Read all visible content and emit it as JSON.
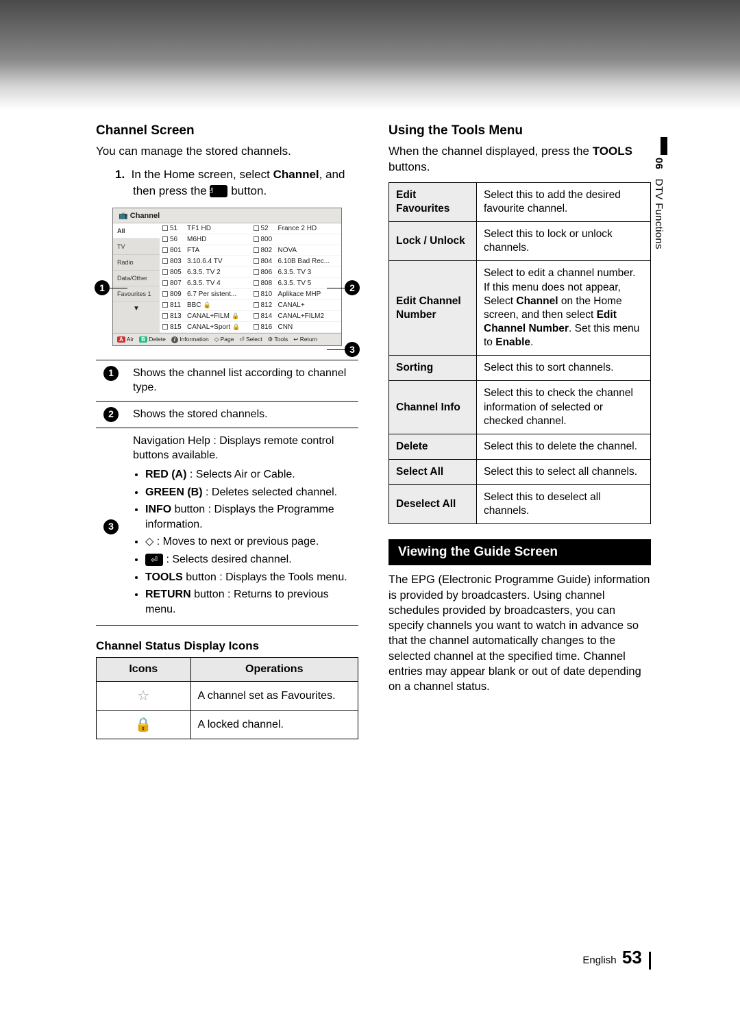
{
  "side_tab": {
    "section_num": "06",
    "title": "DTV Functions"
  },
  "left": {
    "h_channel_screen": "Channel Screen",
    "intro": "You can manage the stored channels.",
    "step1_a": "In the Home screen, select ",
    "step1_b": "Channel",
    "step1_c": ", and then press the ",
    "step1_d": " button.",
    "shot": {
      "title": "Channel",
      "side_tabs": [
        "All",
        "TV",
        "Radio",
        "Data/Other",
        "Favourites 1"
      ],
      "channels": [
        [
          {
            "n": "51",
            "t": "TF1 HD"
          },
          {
            "n": "52",
            "t": "France 2 HD"
          }
        ],
        [
          {
            "n": "56",
            "t": "M6HD"
          },
          {
            "n": "800",
            "t": ""
          }
        ],
        [
          {
            "n": "801",
            "t": "FTA"
          },
          {
            "n": "802",
            "t": "NOVA"
          }
        ],
        [
          {
            "n": "803",
            "t": "3.10.6.4 TV"
          },
          {
            "n": "804",
            "t": "6.10B Bad Rec..."
          }
        ],
        [
          {
            "n": "805",
            "t": "6.3.5. TV 2"
          },
          {
            "n": "806",
            "t": "6.3.5. TV 3"
          }
        ],
        [
          {
            "n": "807",
            "t": "6.3.5. TV 4"
          },
          {
            "n": "808",
            "t": "6.3.5. TV 5"
          }
        ],
        [
          {
            "n": "809",
            "t": "6.7 Per sistent..."
          },
          {
            "n": "810",
            "t": "Aplikace MHP"
          }
        ],
        [
          {
            "n": "811",
            "t": "BBC",
            "lock": true
          },
          {
            "n": "812",
            "t": "CANAL+"
          }
        ],
        [
          {
            "n": "813",
            "t": "CANAL+FILM",
            "lock": true
          },
          {
            "n": "814",
            "t": "CANAL+FILM2"
          }
        ],
        [
          {
            "n": "815",
            "t": "CANAL+Sport",
            "lock": true
          },
          {
            "n": "816",
            "t": "CNN"
          }
        ]
      ],
      "legend": {
        "a": "A",
        "air": "Air",
        "b": "B",
        "del": "Delete",
        "info": "Information",
        "page": "Page",
        "select": "Select",
        "tools": "Tools",
        "ret": "Return"
      }
    },
    "ref1": "Shows the channel list according to channel type.",
    "ref2": "Shows the stored channels.",
    "ref3_lead": "Navigation Help : Displays remote control buttons available.",
    "ref3_items": [
      {
        "b": "RED (A)",
        "t": " : Selects Air or Cable."
      },
      {
        "b": "GREEN (B)",
        "t": " : Deletes selected channel."
      },
      {
        "b": "INFO",
        "t": " button : Displays the Programme information."
      },
      {
        "b": "",
        "t": " : Moves to next or previous page.",
        "diamond": true
      },
      {
        "b": "",
        "t": " : Selects desired channel.",
        "enter": true
      },
      {
        "b": "TOOLS",
        "t": " button : Displays the Tools menu."
      },
      {
        "b": "RETURN",
        "t": " button : Returns to previous menu."
      }
    ],
    "h_status_icons": "Channel Status Display Icons",
    "icons_header": {
      "c1": "Icons",
      "c2": "Operations"
    },
    "icons_rows": [
      {
        "op": "A channel set as Favourites."
      },
      {
        "op": "A locked channel."
      }
    ]
  },
  "right": {
    "h_tools": "Using the Tools Menu",
    "tools_intro_a": "When the channel displayed, press the ",
    "tools_intro_b": "TOOLS",
    "tools_intro_c": " buttons.",
    "tools_rows": [
      {
        "k": "Edit Favourites",
        "v": "Select this to add the desired favourite channel."
      },
      {
        "k": "Lock / Unlock",
        "v": "Select this to lock or unlock channels."
      },
      {
        "k": "Edit Channel Number",
        "v_parts": {
          "a": "Select to edit a channel number. If this menu does not appear, Select ",
          "b": "Channel",
          "c": " on the Home screen, and then select ",
          "d": "Edit Channel Number",
          "e": ". Set this menu to ",
          "f": "Enable",
          "g": "."
        }
      },
      {
        "k": "Sorting",
        "v": "Select this to sort channels."
      },
      {
        "k": "Channel Info",
        "v": "Select this to check the channel information of selected or checked channel."
      },
      {
        "k": "Delete",
        "v": "Select this to delete the channel."
      },
      {
        "k": "Select All",
        "v": "Select this to select all channels."
      },
      {
        "k": "Deselect All",
        "v": "Select this to deselect all channels."
      }
    ],
    "blackbar": "Viewing the Guide Screen",
    "guide_para": "The EPG (Electronic Programme Guide) information is provided by broadcasters. Using channel schedules provided by broadcasters, you can specify channels you want to watch in advance so that the channel automatically changes to the selected channel at the specified time. Channel entries may appear blank or out of date depending on a channel status."
  },
  "footer": {
    "lang": "English",
    "page": "53"
  }
}
